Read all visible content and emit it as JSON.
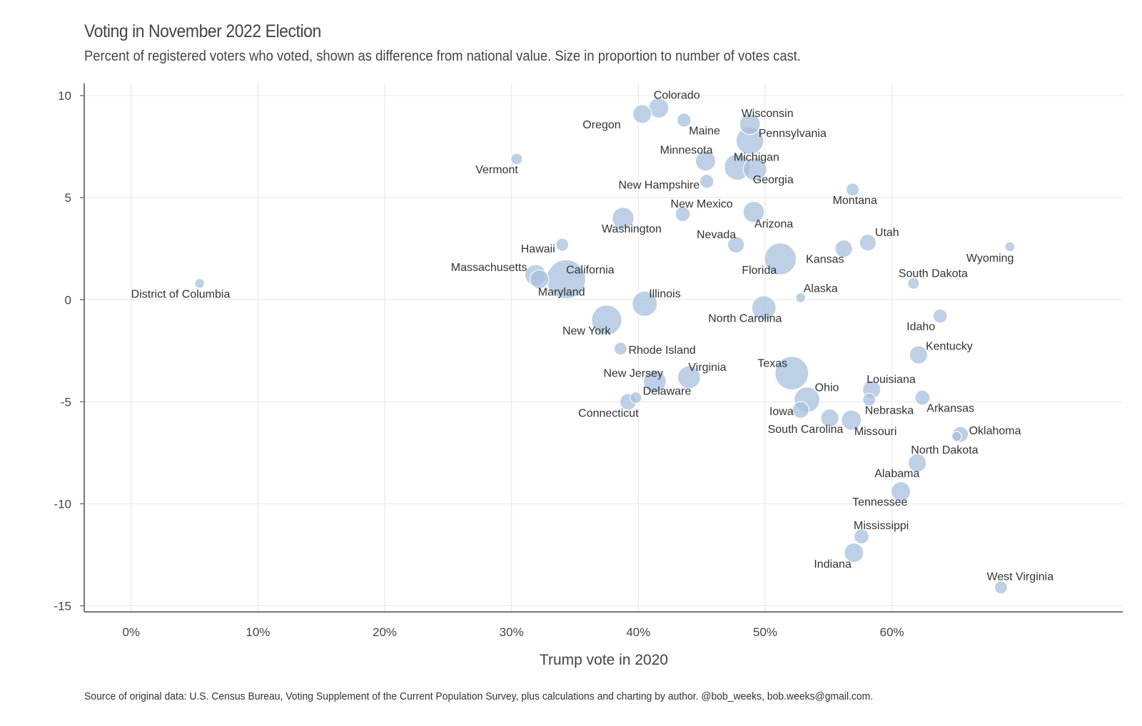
{
  "title": "Voting in November 2022 Election",
  "subtitle": "Percent of registered voters who voted, shown as difference from national value. Size in proportion to number of votes cast.",
  "source": "Source of original data: U.S. Census Bureau, Voting Supplement of the Current Population Survey, plus calculations and charting by author. @bob_weeks, bob.weeks@gmail.com.",
  "chart_data": {
    "type": "scatter",
    "xlabel": "Trump vote in 2020",
    "ylabel": "",
    "xlim": [
      -0.037,
      0.782
    ],
    "ylim": [
      -15.3,
      10.6
    ],
    "xticks": [
      0,
      0.1,
      0.2,
      0.3,
      0.4,
      0.5,
      0.6
    ],
    "xtick_labels": [
      "0%",
      "10%",
      "20%",
      "30%",
      "40%",
      "50%",
      "60%"
    ],
    "yticks": [
      10,
      5,
      0,
      -5,
      -10,
      -15
    ],
    "ytick_labels": [
      "10",
      "5",
      "0",
      "-5",
      "-10",
      "-15"
    ],
    "grid": true,
    "size_encoding": "votes cast",
    "points": [
      {
        "label": "Colorado",
        "x": 0.416,
        "y": 9.4,
        "size": 12
      },
      {
        "label": "Oregon",
        "x": 0.403,
        "y": 9.1,
        "size": 10
      },
      {
        "label": "Maine",
        "x": 0.436,
        "y": 8.8,
        "size": 4
      },
      {
        "label": "Wisconsin",
        "x": 0.488,
        "y": 8.6,
        "size": 13
      },
      {
        "label": "Pennsylvania",
        "x": 0.488,
        "y": 7.8,
        "size": 28
      },
      {
        "label": "Vermont",
        "x": 0.304,
        "y": 6.9,
        "size": 2
      },
      {
        "label": "Minnesota",
        "x": 0.453,
        "y": 6.8,
        "size": 12
      },
      {
        "label": "Michigan",
        "x": 0.478,
        "y": 6.5,
        "size": 24
      },
      {
        "label": "Georgia",
        "x": 0.492,
        "y": 6.4,
        "size": 18
      },
      {
        "label": "New Hampshire",
        "x": 0.454,
        "y": 5.8,
        "size": 4
      },
      {
        "label": "Montana",
        "x": 0.569,
        "y": 5.4,
        "size": 3
      },
      {
        "label": "New Mexico",
        "x": 0.435,
        "y": 4.2,
        "size": 5
      },
      {
        "label": "Arizona",
        "x": 0.491,
        "y": 4.3,
        "size": 14
      },
      {
        "label": "Washington",
        "x": 0.388,
        "y": 4.0,
        "size": 15
      },
      {
        "label": "Utah",
        "x": 0.581,
        "y": 2.8,
        "size": 7
      },
      {
        "label": "Hawaii",
        "x": 0.34,
        "y": 2.7,
        "size": 3
      },
      {
        "label": "Nevada",
        "x": 0.477,
        "y": 2.7,
        "size": 7
      },
      {
        "label": "Kansas",
        "x": 0.562,
        "y": 2.5,
        "size": 8
      },
      {
        "label": "Wyoming",
        "x": 0.693,
        "y": 2.6,
        "size": 1
      },
      {
        "label": "Florida",
        "x": 0.512,
        "y": 2.0,
        "size": 40
      },
      {
        "label": "Massachusetts",
        "x": 0.319,
        "y": 1.2,
        "size": 14
      },
      {
        "label": "Maryland",
        "x": 0.322,
        "y": 1.0,
        "size": 10
      },
      {
        "label": "California",
        "x": 0.343,
        "y": 1.0,
        "size": 65
      },
      {
        "label": "District of Columbia",
        "x": 0.054,
        "y": 0.8,
        "size": 1
      },
      {
        "label": "South Dakota",
        "x": 0.617,
        "y": 0.8,
        "size": 2
      },
      {
        "label": "Alaska",
        "x": 0.528,
        "y": 0.1,
        "size": 1
      },
      {
        "label": "Illinois",
        "x": 0.405,
        "y": -0.2,
        "size": 22
      },
      {
        "label": "North Carolina",
        "x": 0.499,
        "y": -0.4,
        "size": 20
      },
      {
        "label": "Idaho",
        "x": 0.638,
        "y": -0.8,
        "size": 4
      },
      {
        "label": "New York",
        "x": 0.375,
        "y": -1.0,
        "size": 35
      },
      {
        "label": "Rhode Island",
        "x": 0.386,
        "y": -2.4,
        "size": 3
      },
      {
        "label": "Kentucky",
        "x": 0.621,
        "y": -2.7,
        "size": 9
      },
      {
        "label": "Texas",
        "x": 0.521,
        "y": -3.6,
        "size": 45
      },
      {
        "label": "New Jersey",
        "x": 0.413,
        "y": -4.0,
        "size": 17
      },
      {
        "label": "Virginia",
        "x": 0.44,
        "y": -3.8,
        "size": 17
      },
      {
        "label": "Louisiana",
        "x": 0.584,
        "y": -4.4,
        "size": 9
      },
      {
        "label": "Delaware",
        "x": 0.398,
        "y": -4.8,
        "size": 2
      },
      {
        "label": "Ohio",
        "x": 0.533,
        "y": -4.9,
        "size": 23
      },
      {
        "label": "Nebraska",
        "x": 0.582,
        "y": -4.9,
        "size": 3
      },
      {
        "label": "Arkansas",
        "x": 0.624,
        "y": -4.8,
        "size": 5
      },
      {
        "label": "Connecticut",
        "x": 0.392,
        "y": -5.0,
        "size": 7
      },
      {
        "label": "Iowa",
        "x": 0.528,
        "y": -5.4,
        "size": 7
      },
      {
        "label": "South Carolina",
        "x": 0.551,
        "y": -5.8,
        "size": 9
      },
      {
        "label": "Missouri",
        "x": 0.568,
        "y": -5.9,
        "size": 12
      },
      {
        "label": "Oklahoma",
        "x": 0.654,
        "y": -6.6,
        "size": 6
      },
      {
        "label": "North Dakota",
        "x": 0.651,
        "y": -6.7,
        "size": 1
      },
      {
        "label": "Alabama",
        "x": 0.62,
        "y": -8.0,
        "size": 9
      },
      {
        "label": "Tennessee",
        "x": 0.607,
        "y": -9.4,
        "size": 11
      },
      {
        "label": "Mississippi",
        "x": 0.576,
        "y": -11.6,
        "size": 5
      },
      {
        "label": "Indiana",
        "x": 0.57,
        "y": -12.4,
        "size": 11
      },
      {
        "label": "West Virginia",
        "x": 0.686,
        "y": -14.1,
        "size": 3
      }
    ]
  }
}
